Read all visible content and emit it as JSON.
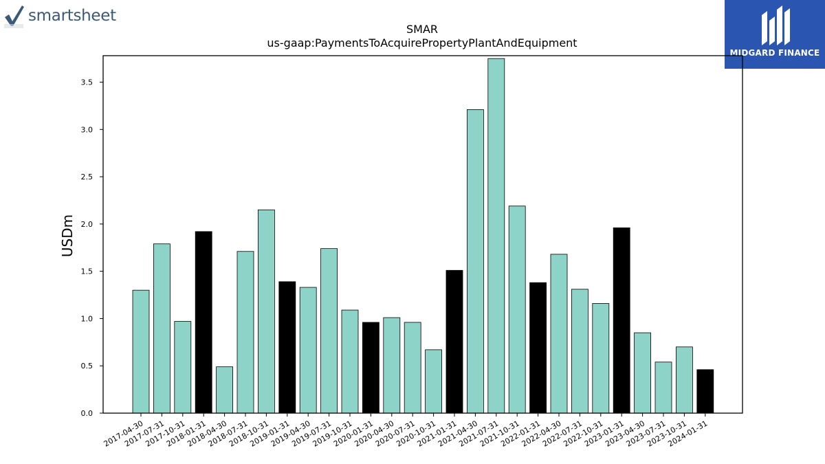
{
  "logos": {
    "left_text": "smartsheet",
    "right_text": "MIDGARD FINANCE"
  },
  "colors": {
    "bar_default": "#8dd3c7",
    "bar_highlight": "#000000",
    "logo_right_bg": "#2a55b0",
    "logo_left_text": "#3b5a75"
  },
  "chart_data": {
    "type": "bar",
    "title": "SMAR",
    "subtitle": "us-gaap:PaymentsToAcquirePropertyPlantAndEquipment",
    "xlabel": "",
    "ylabel": "USDm",
    "ylim": [
      0,
      3.78
    ],
    "yticks": [
      0.0,
      0.5,
      1.0,
      1.5,
      2.0,
      2.5,
      3.0,
      3.5
    ],
    "ytick_labels": [
      "0.0",
      "0.5",
      "1.0",
      "1.5",
      "2.0",
      "2.5",
      "3.0",
      "3.5"
    ],
    "grid": false,
    "categories": [
      "2017-04-30",
      "2017-07-31",
      "2017-10-31",
      "2018-01-31",
      "2018-04-30",
      "2018-07-31",
      "2018-10-31",
      "2019-01-31",
      "2019-04-30",
      "2019-07-31",
      "2019-10-31",
      "2020-01-31",
      "2020-04-30",
      "2020-07-31",
      "2020-10-31",
      "2021-01-31",
      "2021-04-30",
      "2021-07-31",
      "2021-10-31",
      "2022-01-31",
      "2022-04-30",
      "2022-07-31",
      "2022-10-31",
      "2023-01-31",
      "2023-04-30",
      "2023-07-31",
      "2023-10-31",
      "2024-01-31"
    ],
    "values": [
      1.3,
      1.79,
      0.97,
      1.92,
      0.49,
      1.71,
      2.15,
      1.39,
      1.33,
      1.74,
      1.09,
      0.96,
      1.01,
      0.96,
      0.67,
      1.51,
      3.21,
      3.75,
      2.19,
      1.38,
      1.68,
      1.31,
      1.16,
      1.96,
      0.85,
      0.54,
      0.7,
      0.46
    ],
    "highlighted": [
      false,
      false,
      false,
      true,
      false,
      false,
      false,
      true,
      false,
      false,
      false,
      true,
      false,
      false,
      false,
      true,
      false,
      false,
      false,
      true,
      false,
      false,
      false,
      true,
      false,
      false,
      false,
      true
    ]
  }
}
